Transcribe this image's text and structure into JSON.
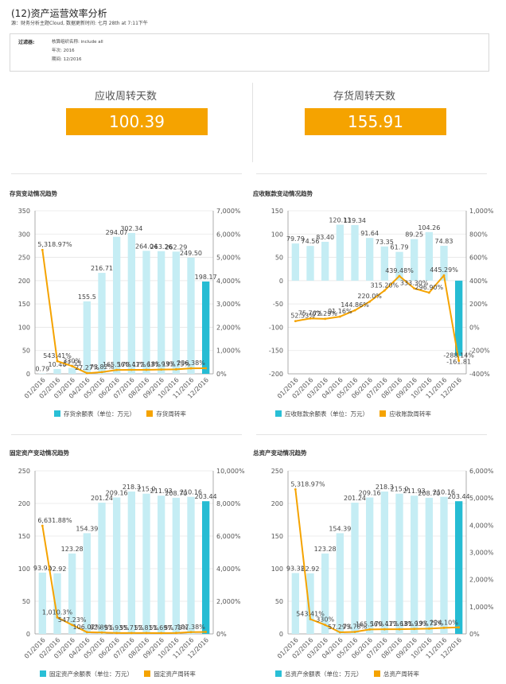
{
  "header": {
    "title": "(12)资产运营效率分析",
    "subtitle": "源：财务分析主题Cloud, 数据更新时间: 七月 28th at 7:11下午"
  },
  "filter": {
    "label": "过滤器:",
    "org": "核算组织名称: include all",
    "year": "年次: 2016",
    "period": "期间: 12/2016"
  },
  "kpis": [
    {
      "label": "应收周转天数",
      "value": "100.39"
    },
    {
      "label": "存货周转天数",
      "value": "155.91"
    }
  ],
  "colors": {
    "bar_light": "#c5edf4",
    "bar_last": "#26bcd3",
    "line": "#f5a300",
    "kpi_bg": "#f5a300"
  },
  "chart_data": [
    {
      "type": "bar",
      "title": "存货变动情况趋势",
      "categories": [
        "01/2016",
        "02/2016",
        "03/2016",
        "04/2016",
        "05/2016",
        "06/2016",
        "07/2016",
        "08/2016",
        "09/2016",
        "10/2016",
        "11/2016",
        "12/2016"
      ],
      "ylim": [
        0,
        350
      ],
      "yticks": [
        0,
        50,
        100,
        150,
        200,
        250,
        300,
        350
      ],
      "y2lim": [
        0,
        7000
      ],
      "y2ticks": [
        "0%",
        "1,000%",
        "2,000%",
        "3,000%",
        "4,000%",
        "5,000%",
        "6,000%",
        "7,000%"
      ],
      "series": [
        {
          "name": "存货余额表（单位：万元）",
          "kind": "bar",
          "values": [
            0.79,
            10.4,
            12.55,
            155.5,
            216.71,
            294.07,
            302.34,
            264.04,
            263.26,
            262.29,
            249.5,
            198.17
          ],
          "labels": [
            "0.79",
            "10.40",
            "12.55",
            "155.5",
            "216.71",
            "294.07",
            "302.34",
            "264.04",
            "263.26",
            "262.29",
            "249.50",
            "198.17"
          ]
        },
        {
          "name": "存货周转率",
          "kind": "line",
          "values": [
            5318.97,
            543.41,
            330.0,
            27.27,
            73.82,
            165.56,
            170.41,
            172.63,
            181.93,
            193.75,
            236.38,
            240.0
          ],
          "labels": [
            "5,318.97%",
            "543.41%",
            "330%",
            "27.27%",
            "73.82%",
            "165.56%",
            "170.41%",
            "172.63%",
            "181.93%",
            "193.75%",
            "236.38%",
            ""
          ]
        }
      ]
    },
    {
      "type": "bar",
      "title": "应收账款变动情况趋势",
      "categories": [
        "01/2016",
        "02/2016",
        "03/2016",
        "04/2016",
        "05/2016",
        "06/2016",
        "07/2016",
        "08/2016",
        "09/2016",
        "10/2016",
        "11/2016",
        "12/2016"
      ],
      "ylim": [
        -200,
        150
      ],
      "yticks": [
        -200,
        -150,
        -100,
        -50,
        0,
        50,
        100,
        150
      ],
      "y2lim": [
        -400,
        1000
      ],
      "y2ticks": [
        "-400%",
        "-200%",
        "0%",
        "200%",
        "400%",
        "600%",
        "800%",
        "1,000%"
      ],
      "series": [
        {
          "name": "应收账款余额表（单位：万元）",
          "kind": "bar",
          "values": [
            79.79,
            74.56,
            83.4,
            120.13,
            119.34,
            91.64,
            73.35,
            61.79,
            89.25,
            104.26,
            74.83,
            -161.81
          ],
          "labels": [
            "79.79",
            "74.56",
            "83.40",
            "120.13",
            "119.34",
            "91.64",
            "73.35",
            "61.79",
            "89.25",
            "104.26",
            "74.83",
            "-161.81"
          ]
        },
        {
          "name": "应收账款周转率",
          "kind": "line",
          "values": [
            52.53,
            75.76,
            72.29,
            91.16,
            144.86,
            220.0,
            315.2,
            439.48,
            333.3,
            296.9,
            445.29,
            -288.14
          ],
          "labels": [
            "52.53%",
            "75.76%",
            "72.29%",
            "91.16%",
            "144.86%",
            "220.0%",
            "315.20%",
            "439.48%",
            "333.30%",
            "296.90%",
            "445.29%",
            "-288.14%"
          ]
        }
      ]
    },
    {
      "type": "bar",
      "title": "固定资产变动情况趋势",
      "categories": [
        "01/2016",
        "02/2016",
        "03/2016",
        "04/2016",
        "05/2016",
        "06/2016",
        "07/2016",
        "08/2016",
        "09/2016",
        "10/2016",
        "11/2016",
        "12/2016"
      ],
      "ylim": [
        0,
        250
      ],
      "yticks": [
        0,
        50,
        100,
        150,
        200,
        250
      ],
      "y2lim": [
        0,
        10000
      ],
      "y2ticks": [
        "0%",
        "2,000%",
        "4,000%",
        "6,000%",
        "8,000%",
        "10,000%"
      ],
      "series": [
        {
          "name": "固定资产余额表（单位：万元）",
          "kind": "bar",
          "values": [
            93.92,
            92.92,
            123.28,
            154.39,
            201.24,
            209.16,
            218.3,
            215.0,
            211.93,
            208.7,
            210.16,
            203.44
          ],
          "labels": [
            "93.92",
            "92.92",
            "123.28",
            "154.39",
            "201.24",
            "209.16",
            "218.3",
            "215.0",
            "211.93",
            "208.70",
            "210.16",
            "203.44"
          ]
        },
        {
          "name": "固定资产周转率",
          "kind": "line",
          "values": [
            6631.88,
            1010.3,
            547.23,
            106.02,
            82.89,
            51.93,
            55.71,
            52.81,
            51.69,
            57.75,
            107.38,
            120.0
          ],
          "labels": [
            "6,631.88%",
            "1,010.3%",
            "547.23%",
            "106.02%",
            "82.89%",
            "51.93%",
            "55.71%",
            "52.81%",
            "51.69%",
            "57.75%",
            "107.38%",
            ""
          ]
        }
      ]
    },
    {
      "type": "bar",
      "title": "总资产变动情况趋势",
      "categories": [
        "01/2016",
        "02/2016",
        "03/2016",
        "04/2016",
        "05/2016",
        "06/2016",
        "07/2016",
        "08/2016",
        "09/2016",
        "10/2016",
        "11/2016",
        "12/2016"
      ],
      "ylim": [
        0,
        250
      ],
      "yticks": [
        0,
        50,
        100,
        150,
        200,
        250
      ],
      "y2lim": [
        0,
        6000
      ],
      "y2ticks": [
        "0%",
        "1,000%",
        "2,000%",
        "3,000%",
        "4,000%",
        "5,000%",
        "6,000%"
      ],
      "series": [
        {
          "name": "总资产余额表（单位：万元）",
          "kind": "bar",
          "values": [
            93.32,
            92.92,
            123.28,
            154.39,
            201.24,
            209.16,
            218.3,
            215.0,
            211.93,
            208.7,
            210.16,
            203.44
          ],
          "labels": [
            "93.32",
            "92.92",
            "123.28",
            "154.39",
            "201.24",
            "209.16",
            "218.3",
            "215.0",
            "211.93",
            "208.70",
            "210.16",
            "203.44"
          ]
        },
        {
          "name": "总资产周转率",
          "kind": "line",
          "values": [
            5318.97,
            543.41,
            330.0,
            57.29,
            73.78,
            165.56,
            170.41,
            172.63,
            181.93,
            193.75,
            224.1,
            240.0
          ],
          "labels": [
            "5,318.97%",
            "543.41%",
            "330%",
            "57.29%",
            "73.78%",
            "165.56%",
            "170.41%",
            "172.63%",
            "181.93%",
            "193.75%",
            "224.10%",
            ""
          ]
        }
      ]
    }
  ]
}
